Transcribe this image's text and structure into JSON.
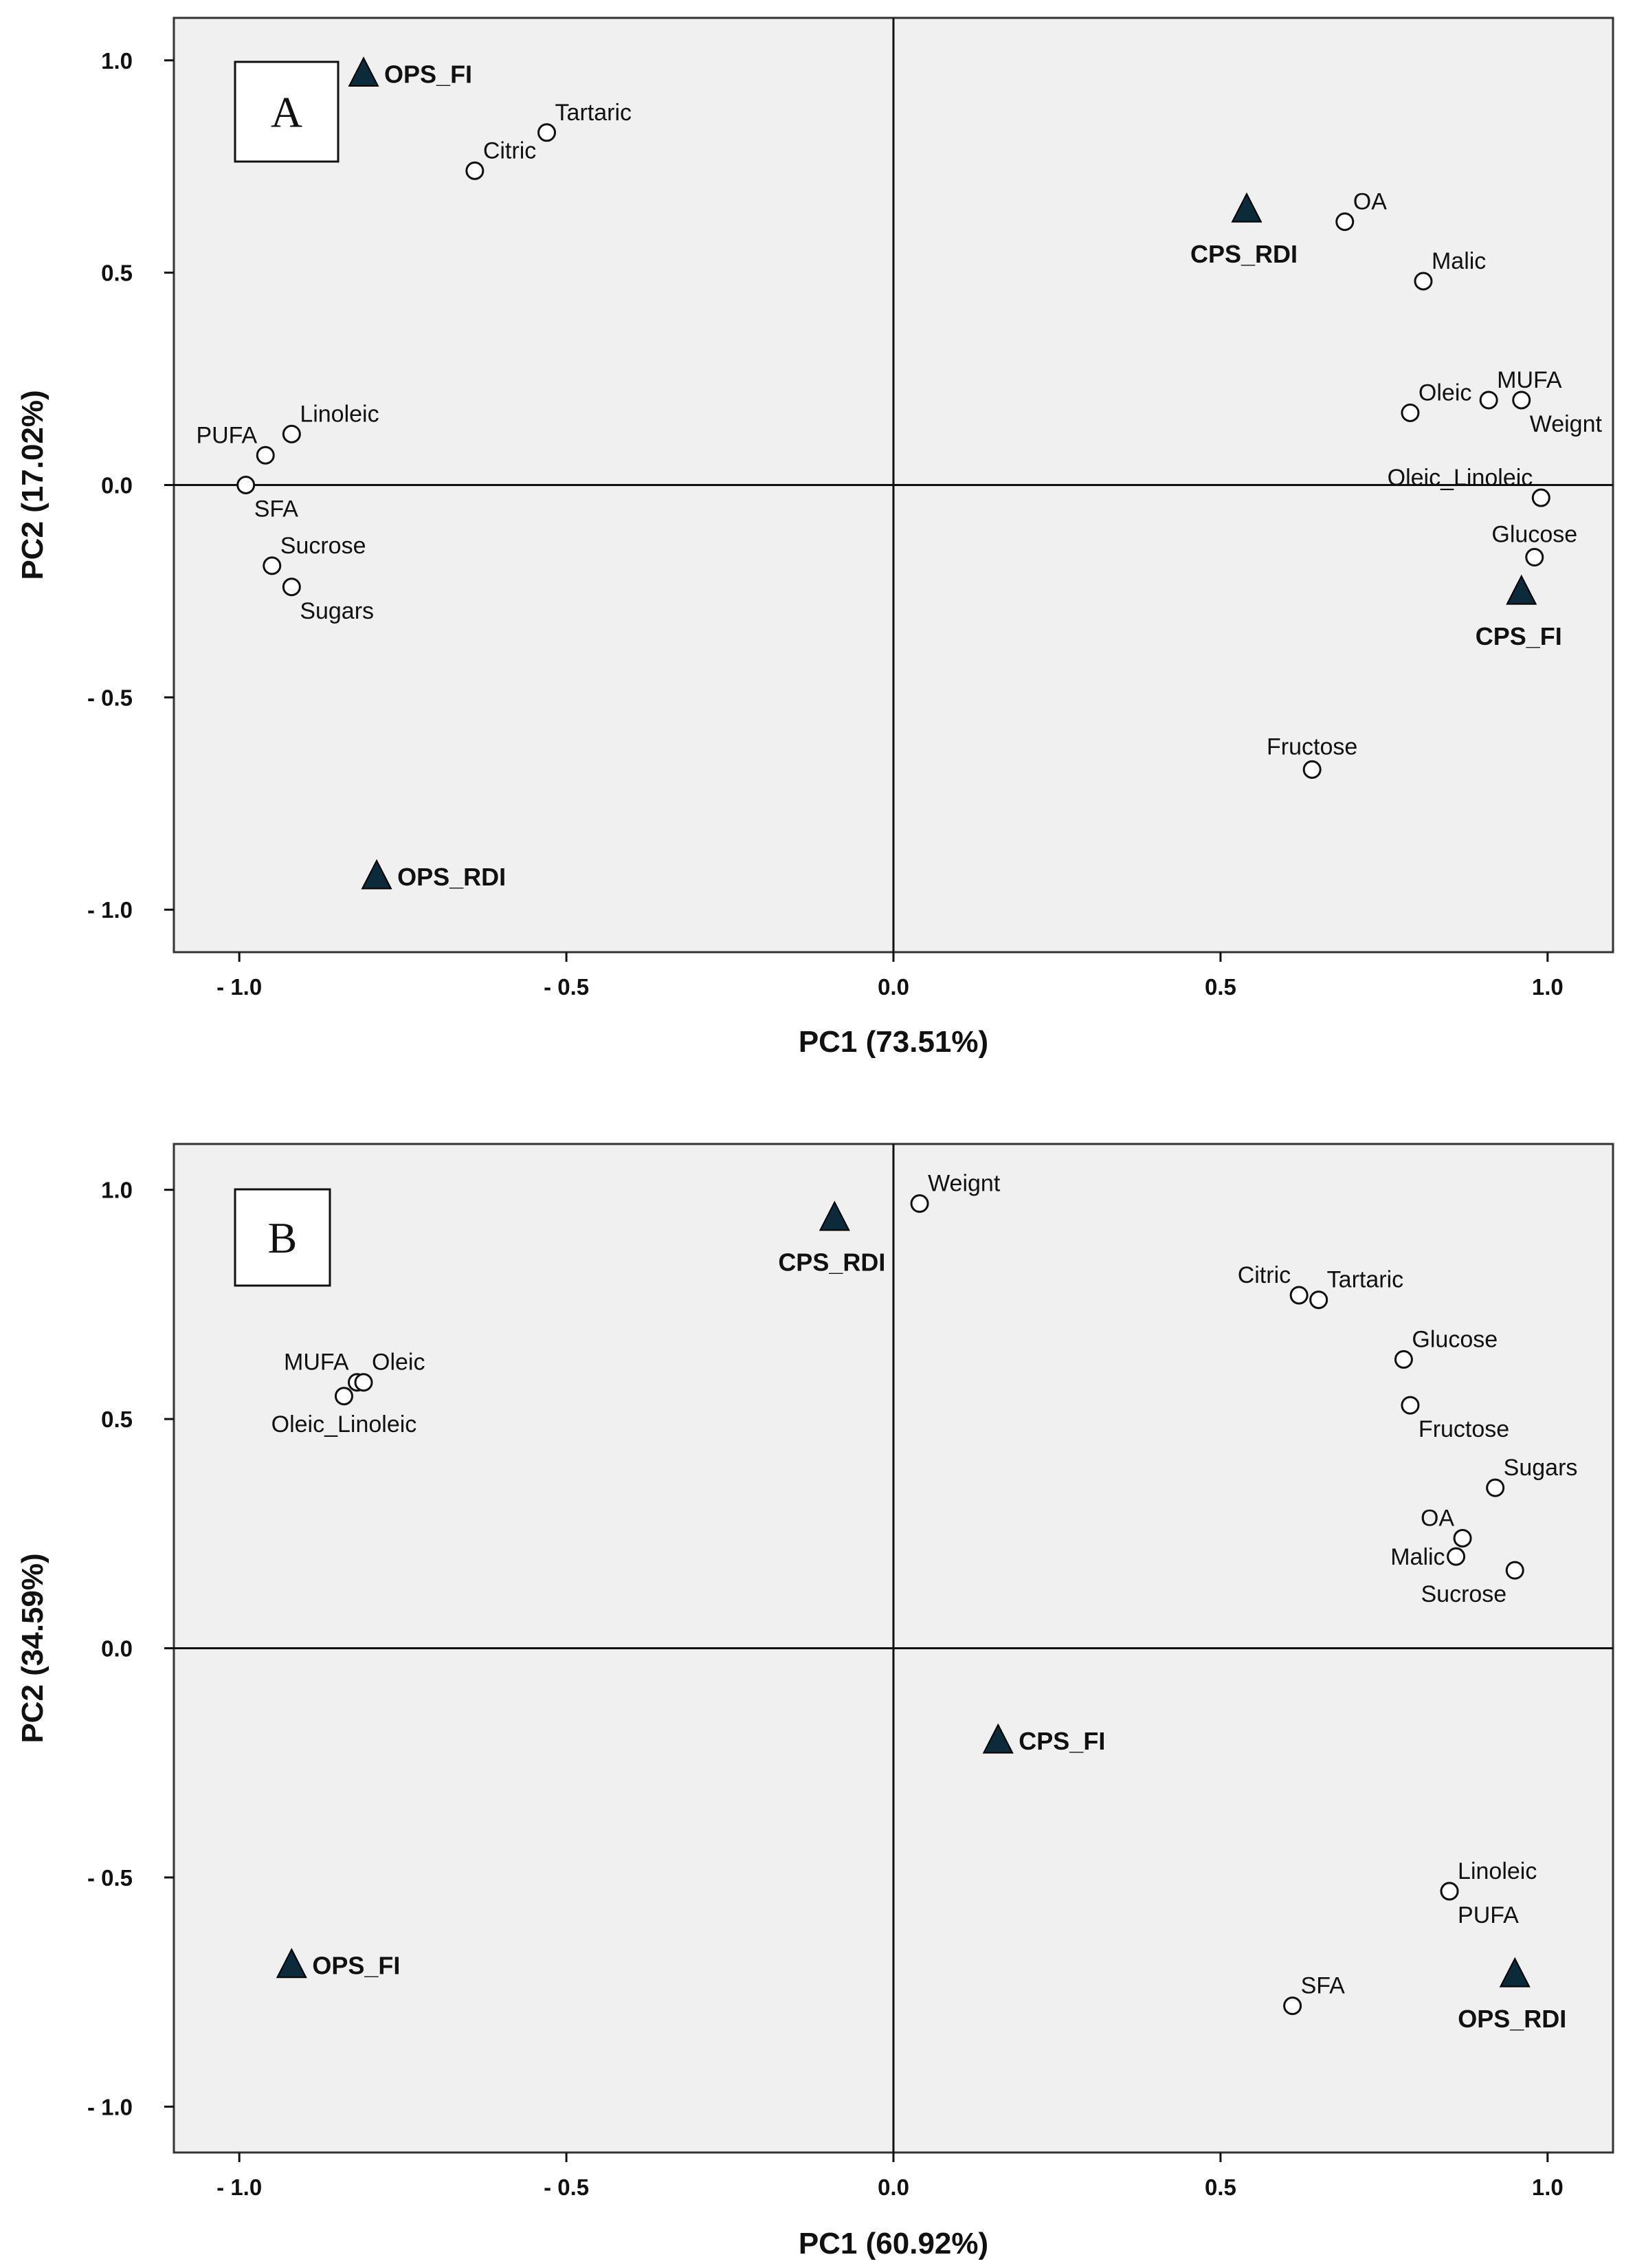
{
  "colors": {
    "plot_bg": "#f0f0f0",
    "frame": "#333333",
    "marker_fill": "#0b2a3a",
    "circle_fill": "#ffffff"
  },
  "chart_data": [
    {
      "type": "scatter",
      "panel_label": "A",
      "xlabel": "PC1 (73.51%)",
      "ylabel": "PC2 (17.02%)",
      "xlim": [
        -1.1,
        1.1
      ],
      "ylim": [
        -1.1,
        1.1
      ],
      "xticks": [
        -1.0,
        -0.5,
        0.0,
        0.5,
        1.0
      ],
      "yticks": [
        -1.0,
        -0.5,
        0.0,
        0.5,
        1.0
      ],
      "xtick_labels": [
        "- 1.0",
        "- 0.5",
        "0.0",
        "0.5",
        "1.0"
      ],
      "ytick_labels": [
        "- 1.0",
        "- 0.5",
        "0.0",
        "0.5",
        "1.0"
      ],
      "variables": [
        {
          "name": "Tartaric",
          "x": -0.53,
          "y": 0.83,
          "label_pos": "above-right"
        },
        {
          "name": "Citric",
          "x": -0.64,
          "y": 0.74,
          "label_pos": "above-right"
        },
        {
          "name": "OA",
          "x": 0.69,
          "y": 0.62,
          "label_pos": "above-right"
        },
        {
          "name": "Malic",
          "x": 0.81,
          "y": 0.48,
          "label_pos": "above-right"
        },
        {
          "name": "Oleic",
          "x": 0.79,
          "y": 0.17,
          "label_pos": "above-right"
        },
        {
          "name": "MUFA",
          "x": 0.91,
          "y": 0.2,
          "label_pos": "above-right"
        },
        {
          "name": "Weignt",
          "x": 0.96,
          "y": 0.2,
          "label_pos": "below-right"
        },
        {
          "name": "Oleic_Linoleic",
          "x": 0.99,
          "y": -0.03,
          "label_pos": "above-left"
        },
        {
          "name": "Glucose",
          "x": 0.98,
          "y": -0.17,
          "label_pos": "above"
        },
        {
          "name": "Fructose",
          "x": 0.64,
          "y": -0.67,
          "label_pos": "above"
        },
        {
          "name": "Linoleic",
          "x": -0.92,
          "y": 0.12,
          "label_pos": "above-right"
        },
        {
          "name": "PUFA",
          "x": -0.96,
          "y": 0.07,
          "label_pos": "above-left"
        },
        {
          "name": "SFA",
          "x": -0.99,
          "y": 0.0,
          "label_pos": "below-right"
        },
        {
          "name": "Sucrose",
          "x": -0.95,
          "y": -0.19,
          "label_pos": "above-right"
        },
        {
          "name": "Sugars",
          "x": -0.92,
          "y": -0.24,
          "label_pos": "below-right"
        }
      ],
      "observations": [
        {
          "name": "OPS_FI",
          "x": -0.81,
          "y": 0.97,
          "label_pos": "right"
        },
        {
          "name": "CPS_RDI",
          "x": 0.54,
          "y": 0.65,
          "label_pos": "below"
        },
        {
          "name": "CPS_FI",
          "x": 0.96,
          "y": -0.25,
          "label_pos": "below"
        },
        {
          "name": "OPS_RDI",
          "x": -0.79,
          "y": -0.92,
          "label_pos": "right"
        }
      ]
    },
    {
      "type": "scatter",
      "panel_label": "B",
      "xlabel": "PC1 (60.92%)",
      "ylabel": "PC2 (34.59%)",
      "xlim": [
        -1.1,
        1.1
      ],
      "ylim": [
        -1.1,
        1.1
      ],
      "xticks": [
        -1.0,
        -0.5,
        0.0,
        0.5,
        1.0
      ],
      "yticks": [
        -1.0,
        -0.5,
        0.0,
        0.5,
        1.0
      ],
      "xtick_labels": [
        "- 1.0",
        "- 0.5",
        "0.0",
        "0.5",
        "1.0"
      ],
      "ytick_labels": [
        "- 1.0",
        "- 0.5",
        "0.0",
        "0.5",
        "1.0"
      ],
      "variables": [
        {
          "name": "Weignt",
          "x": 0.04,
          "y": 0.97,
          "label_pos": "above-right"
        },
        {
          "name": "Citric",
          "x": 0.62,
          "y": 0.77,
          "label_pos": "above-left"
        },
        {
          "name": "Tartaric",
          "x": 0.65,
          "y": 0.76,
          "label_pos": "above-right"
        },
        {
          "name": "Glucose",
          "x": 0.78,
          "y": 0.63,
          "label_pos": "above-right"
        },
        {
          "name": "Fructose",
          "x": 0.79,
          "y": 0.53,
          "label_pos": "below-right"
        },
        {
          "name": "Sugars",
          "x": 0.92,
          "y": 0.35,
          "label_pos": "above-right"
        },
        {
          "name": "OA",
          "x": 0.87,
          "y": 0.24,
          "label_pos": "above-left"
        },
        {
          "name": "Malic",
          "x": 0.86,
          "y": 0.2,
          "label_pos": "left"
        },
        {
          "name": "Sucrose",
          "x": 0.95,
          "y": 0.17,
          "label_pos": "below-left"
        },
        {
          "name": "MUFA",
          "x": -0.82,
          "y": 0.58,
          "label_pos": "above-left"
        },
        {
          "name": "Oleic",
          "x": -0.81,
          "y": 0.58,
          "label_pos": "above-right"
        },
        {
          "name": "Oleic_Linoleic",
          "x": -0.84,
          "y": 0.55,
          "label_pos": "below"
        },
        {
          "name": "Linoleic",
          "x": 0.85,
          "y": -0.53,
          "label_pos": "above-right"
        },
        {
          "name": "PUFA",
          "x": 0.85,
          "y": -0.53,
          "label_pos": "below-right"
        },
        {
          "name": "SFA",
          "x": 0.61,
          "y": -0.78,
          "label_pos": "above-right"
        }
      ],
      "observations": [
        {
          "name": "CPS_RDI",
          "x": -0.09,
          "y": 0.94,
          "label_pos": "below"
        },
        {
          "name": "CPS_FI",
          "x": 0.16,
          "y": -0.2,
          "label_pos": "right"
        },
        {
          "name": "OPS_FI",
          "x": -0.92,
          "y": -0.69,
          "label_pos": "right"
        },
        {
          "name": "OPS_RDI",
          "x": 0.95,
          "y": -0.71,
          "label_pos": "below"
        }
      ]
    }
  ]
}
